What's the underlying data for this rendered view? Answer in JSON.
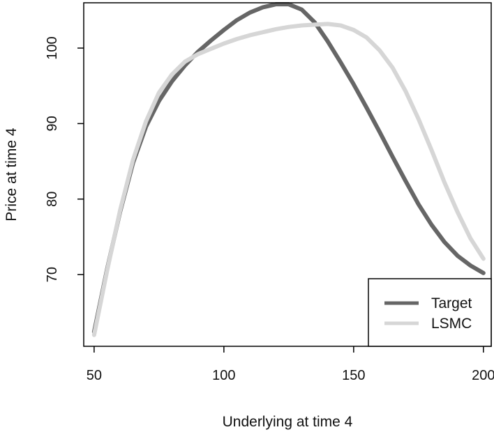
{
  "chart_data": {
    "type": "line",
    "title": "",
    "xlabel": "Underlying at time 4",
    "ylabel": "Price at time 4",
    "xlim": [
      46,
      203
    ],
    "ylim": [
      60.5,
      106
    ],
    "xticks": [
      50,
      100,
      150,
      200
    ],
    "yticks": [
      70,
      80,
      90,
      100
    ],
    "grid": false,
    "legend_position": "bottom-right",
    "series": [
      {
        "name": "Target",
        "color": "#666666",
        "x": [
          50,
          55,
          60,
          65,
          70,
          75,
          80,
          85,
          90,
          95,
          100,
          105,
          110,
          115,
          120,
          125,
          130,
          135,
          140,
          145,
          150,
          155,
          160,
          165,
          170,
          175,
          180,
          185,
          190,
          195,
          200
        ],
        "y": [
          62.4,
          70.7,
          78.3,
          84.8,
          89.6,
          93.0,
          95.6,
          97.7,
          99.5,
          101.0,
          102.4,
          103.7,
          104.7,
          105.4,
          105.8,
          105.8,
          105.1,
          103.4,
          100.9,
          98.1,
          95.2,
          92.1,
          88.9,
          85.6,
          82.4,
          79.3,
          76.6,
          74.3,
          72.5,
          71.2,
          70.2
        ]
      },
      {
        "name": "LSMC",
        "color": "#d6d6d6",
        "x": [
          50,
          55,
          60,
          65,
          70,
          75,
          80,
          85,
          90,
          95,
          100,
          105,
          110,
          115,
          120,
          125,
          130,
          135,
          140,
          145,
          150,
          155,
          160,
          165,
          170,
          175,
          180,
          185,
          190,
          195,
          200
        ],
        "y": [
          62.0,
          70.5,
          78.5,
          85.2,
          90.3,
          94.1,
          96.5,
          98.2,
          99.2,
          99.9,
          100.6,
          101.2,
          101.7,
          102.1,
          102.5,
          102.8,
          103.0,
          103.1,
          103.2,
          103.0,
          102.4,
          101.4,
          99.7,
          97.4,
          94.3,
          90.6,
          86.5,
          82.2,
          78.3,
          74.8,
          72.1
        ]
      }
    ]
  }
}
